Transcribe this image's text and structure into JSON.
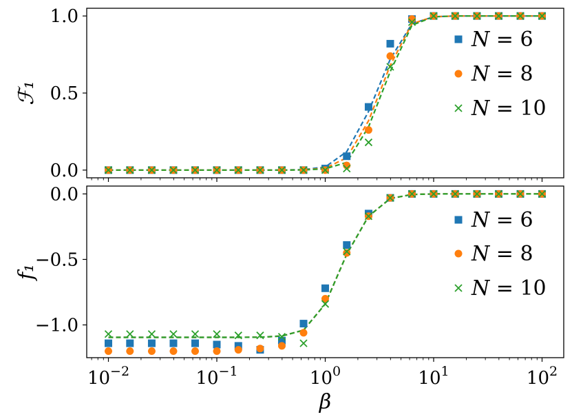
{
  "chart_data": [
    {
      "type": "line",
      "panel": "top",
      "ylabel": "ℱ₁",
      "xscale": "log",
      "xlim_exp": [
        -2.2,
        2.2
      ],
      "ylim": [
        -0.05,
        1.05
      ],
      "yticks": [
        0.0,
        0.5,
        1.0
      ],
      "ytick_labels": [
        "0.0",
        "0.5",
        "1.0"
      ],
      "legend_position": "right",
      "x": [
        0.01,
        0.0158,
        0.0251,
        0.0398,
        0.0631,
        0.1,
        0.158,
        0.251,
        0.398,
        0.631,
        1.0,
        1.58,
        2.51,
        3.98,
        6.31,
        10,
        15.8,
        25.1,
        39.8,
        63.1,
        100
      ],
      "series": [
        {
          "name": "N = 6",
          "color": "#1f77b4",
          "marker": "square",
          "points": [
            0,
            0,
            0,
            0,
            0,
            0,
            0,
            0,
            0,
            0,
            0.01,
            0.09,
            0.41,
            0.82,
            0.98,
            1,
            1,
            1,
            1,
            1,
            1
          ],
          "fit": [
            0,
            0,
            0,
            0,
            0,
            0,
            0,
            0,
            0,
            0.003,
            0.02,
            0.12,
            0.38,
            0.72,
            0.95,
            0.995,
            1,
            1,
            1,
            1,
            1
          ]
        },
        {
          "name": "N = 8",
          "color": "#ff7f0e",
          "marker": "circle",
          "points": [
            0,
            0,
            0,
            0,
            0,
            0,
            0,
            0,
            0,
            0,
            0,
            0.03,
            0.26,
            0.74,
            0.98,
            1,
            1,
            1,
            1,
            1,
            1
          ],
          "fit": [
            0,
            0,
            0,
            0,
            0,
            0,
            0,
            0,
            0,
            0.002,
            0.012,
            0.08,
            0.32,
            0.68,
            0.95,
            0.995,
            1,
            1,
            1,
            1,
            1
          ]
        },
        {
          "name": "N = 10",
          "color": "#2ca02c",
          "marker": "x",
          "points": [
            0,
            0,
            0,
            0,
            0,
            0,
            0,
            0,
            0,
            0,
            0,
            0.01,
            0.18,
            0.67,
            0.96,
            1,
            1,
            1,
            1,
            1,
            1
          ],
          "fit": [
            0,
            0,
            0,
            0,
            0,
            0,
            0,
            0,
            0,
            0.001,
            0.008,
            0.05,
            0.28,
            0.64,
            0.94,
            0.995,
            1,
            1,
            1,
            1,
            1
          ]
        }
      ]
    },
    {
      "type": "line",
      "panel": "bottom",
      "ylabel": "f₁",
      "xlabel": "β",
      "xscale": "log",
      "xlim_exp": [
        -2.2,
        2.2
      ],
      "ylim": [
        -1.25,
        0.06
      ],
      "yticks": [
        0.0,
        -0.5,
        -1.0
      ],
      "ytick_labels": [
        "0.0",
        "−0.5",
        "−1.0"
      ],
      "xtick_exponents": [
        "-2",
        "-1",
        "0",
        "1",
        "2"
      ],
      "xtick_base": "10",
      "legend_position": "right",
      "x": [
        0.01,
        0.0158,
        0.0251,
        0.0398,
        0.0631,
        0.1,
        0.158,
        0.251,
        0.398,
        0.631,
        1.0,
        1.58,
        2.51,
        3.98,
        6.31,
        10,
        15.8,
        25.1,
        39.8,
        63.1,
        100
      ],
      "series": [
        {
          "name": "N = 6",
          "color": "#1f77b4",
          "marker": "square",
          "points": [
            -1.14,
            -1.14,
            -1.14,
            -1.14,
            -1.14,
            -1.15,
            -1.16,
            -1.19,
            -1.12,
            -0.99,
            -0.72,
            -0.39,
            -0.15,
            -0.03,
            0,
            0,
            0,
            0,
            0,
            0,
            0
          ],
          "fit": [
            -1.095,
            -1.095,
            -1.095,
            -1.095,
            -1.095,
            -1.095,
            -1.095,
            -1.094,
            -1.085,
            -1.04,
            -0.84,
            -0.46,
            -0.17,
            -0.035,
            -0.004,
            0,
            0,
            0,
            0,
            0,
            0
          ]
        },
        {
          "name": "N = 8",
          "color": "#ff7f0e",
          "marker": "circle",
          "points": [
            -1.2,
            -1.2,
            -1.2,
            -1.2,
            -1.2,
            -1.2,
            -1.19,
            -1.18,
            -1.16,
            -1.06,
            -0.8,
            -0.45,
            -0.17,
            -0.03,
            0,
            0,
            0,
            0,
            0,
            0,
            0
          ],
          "fit": [
            -1.095,
            -1.095,
            -1.095,
            -1.095,
            -1.095,
            -1.095,
            -1.095,
            -1.094,
            -1.085,
            -1.04,
            -0.84,
            -0.46,
            -0.17,
            -0.035,
            -0.004,
            0,
            0,
            0,
            0,
            0,
            0
          ]
        },
        {
          "name": "N = 10",
          "color": "#2ca02c",
          "marker": "x",
          "points": [
            -1.07,
            -1.07,
            -1.07,
            -1.07,
            -1.07,
            -1.07,
            -1.08,
            -1.08,
            -1.09,
            -1.14,
            -0.84,
            -0.44,
            -0.17,
            -0.03,
            0,
            0,
            0,
            0,
            0,
            0,
            0
          ],
          "fit": [
            -1.095,
            -1.095,
            -1.095,
            -1.095,
            -1.095,
            -1.095,
            -1.095,
            -1.094,
            -1.085,
            -1.04,
            -0.84,
            -0.46,
            -0.17,
            -0.035,
            -0.004,
            0,
            0,
            0,
            0,
            0,
            0
          ]
        }
      ]
    }
  ]
}
